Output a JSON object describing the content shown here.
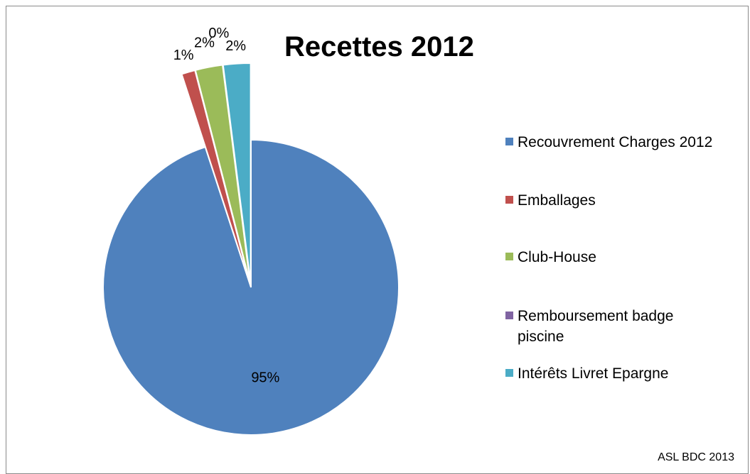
{
  "chart_data": {
    "type": "pie",
    "title": "Recettes 2012",
    "slices": [
      {
        "name": "Recouvrement Charges 2012",
        "value": 95,
        "label": "95%",
        "color": "#4F81BD"
      },
      {
        "name": "Emballages",
        "value": 1,
        "label": "1%",
        "color": "#C0504D"
      },
      {
        "name": "Club-House",
        "value": 2,
        "label": "2%",
        "color": "#9BBB59"
      },
      {
        "name": "Remboursement badge piscine",
        "value": 0,
        "label": "0%",
        "color": "#8064A2"
      },
      {
        "name": "Intérêts Livret Epargne",
        "value": 2,
        "label": "2%",
        "color": "#4BACC6"
      }
    ],
    "exploded": true,
    "legend_position": "right"
  },
  "legend": [
    {
      "label": "Recouvrement Charges 2012",
      "color": "#4F81BD"
    },
    {
      "label": "Emballages",
      "color": "#C0504D"
    },
    {
      "label": "Club-House",
      "color": "#9BBB59"
    },
    {
      "label": "Remboursement badge piscine",
      "color": "#8064A2"
    },
    {
      "label": "Intérêts Livret Epargne",
      "color": "#4BACC6"
    }
  ],
  "footer": "ASL BDC 2013"
}
